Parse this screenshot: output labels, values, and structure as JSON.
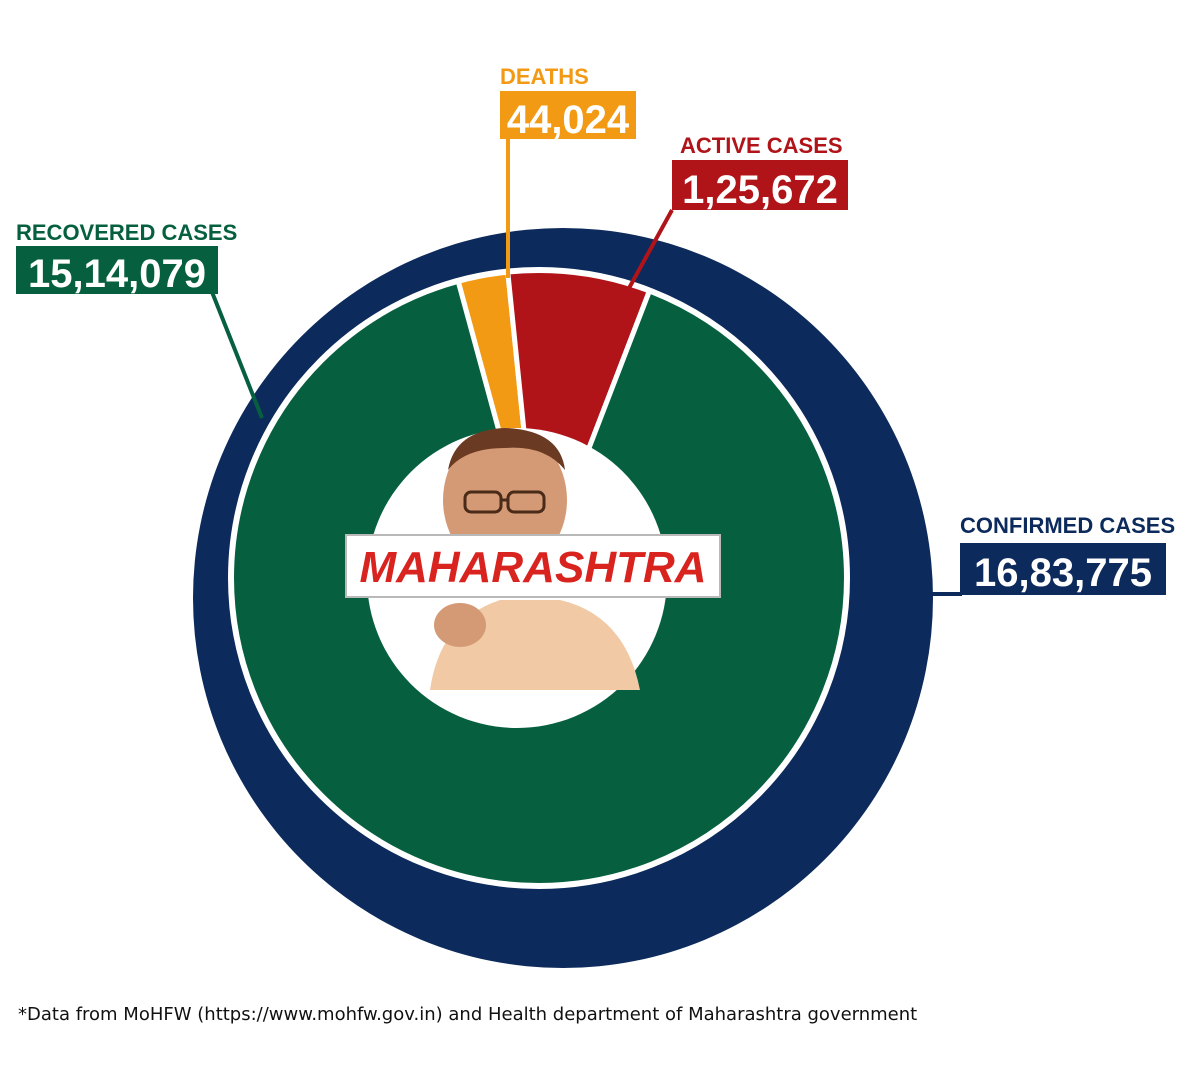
{
  "colors": {
    "confirmed": "#0c2a5b",
    "recovered": "#066040",
    "active": "#b01419",
    "deaths": "#f39a14",
    "center_text": "#d8231e"
  },
  "center": {
    "label": "MAHARASHTRA",
    "photo": "person-portrait"
  },
  "footnote": "*Data from MoHFW (https://www.mohfw.gov.in) and Health department of Maharashtra government",
  "chart_data": {
    "type": "pie",
    "title": "",
    "outer_ring": {
      "label": "CONFIRMED CASES",
      "display": "16,83,775",
      "value": 1683775
    },
    "slices": [
      {
        "name": "RECOVERED CASES",
        "display": "15,14,079",
        "value": 1514079
      },
      {
        "name": "DEATHS",
        "display": "44,024",
        "value": 44024
      },
      {
        "name": "ACTIVE CASES",
        "display": "1,25,672",
        "value": 125672
      }
    ]
  }
}
